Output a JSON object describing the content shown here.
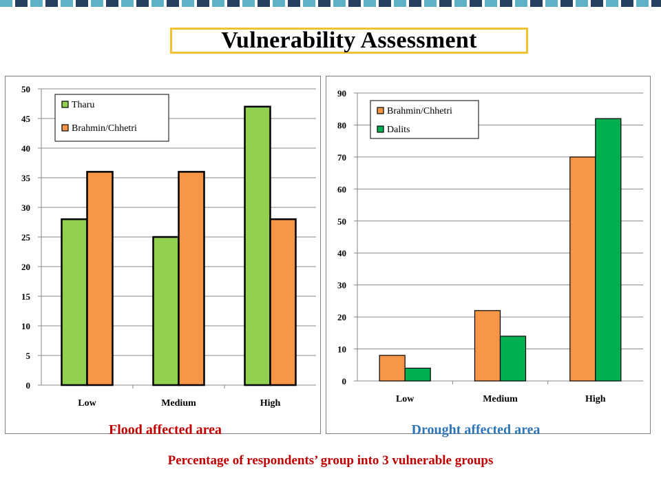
{
  "slide": {
    "title": "Vulnerability Assessment",
    "caption": "Percentage of respondents’ group into 3 vulnerable groups"
  },
  "chart_data": [
    {
      "type": "bar",
      "id": "flood",
      "area_label": "Flood affected area",
      "categories": [
        "Low",
        "Medium",
        "High"
      ],
      "series": [
        {
          "name": "Tharu",
          "values": [
            28,
            25,
            47
          ],
          "color": "#92d050"
        },
        {
          "name": "Brahmin/Chhetri",
          "values": [
            36,
            36,
            28
          ],
          "color": "#f79646"
        }
      ],
      "ylim": [
        0,
        50
      ],
      "yticks": [
        0,
        5,
        10,
        15,
        20,
        25,
        30,
        35,
        40,
        45,
        50
      ],
      "grid": true,
      "legend": "top-left"
    },
    {
      "type": "bar",
      "id": "drought",
      "area_label": "Drought affected area",
      "categories": [
        "Low",
        "Medium",
        "High"
      ],
      "series": [
        {
          "name": "Brahmin/Chhetri",
          "values": [
            8,
            22,
            70
          ],
          "color": "#f79646"
        },
        {
          "name": "Dalits",
          "values": [
            4,
            14,
            82
          ],
          "color": "#00b050"
        }
      ],
      "ylim": [
        0,
        90
      ],
      "yticks": [
        0,
        10,
        20,
        30,
        40,
        50,
        60,
        70,
        80,
        90
      ],
      "grid": true,
      "legend": "top-left"
    }
  ]
}
